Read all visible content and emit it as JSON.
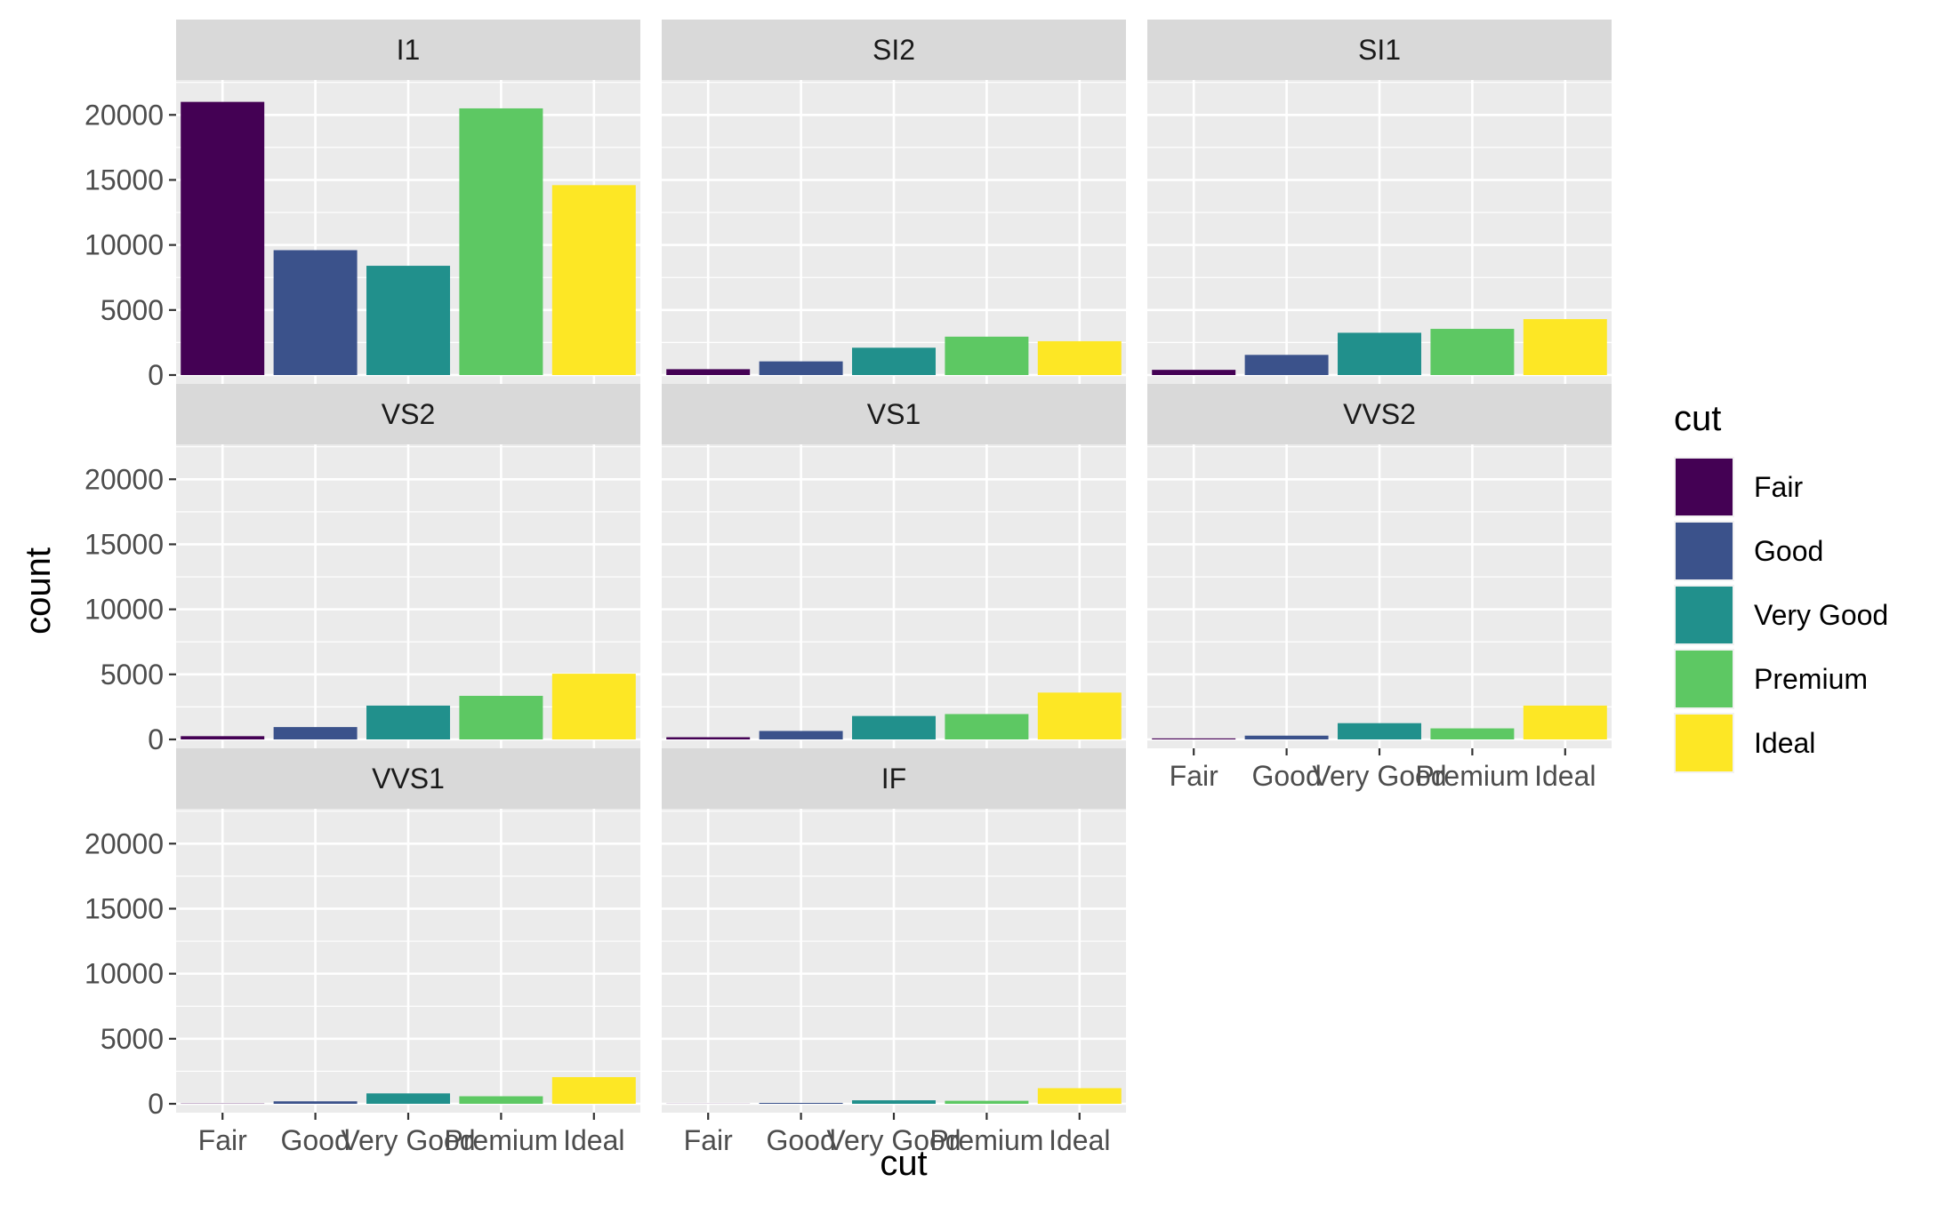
{
  "chart_data": {
    "type": "bar",
    "facet_by": "clarity",
    "xlabel": "cut",
    "ylabel": "count",
    "ylim": [
      0,
      22000
    ],
    "y_ticks": [
      0,
      5000,
      10000,
      15000,
      20000
    ],
    "y_tick_labels": [
      "0",
      "5000",
      "10000",
      "15000",
      "20000"
    ],
    "categories": [
      "Fair",
      "Good",
      "Very Good",
      "Premium",
      "Ideal"
    ],
    "colors": [
      "#440154",
      "#3b528b",
      "#21908c",
      "#5dc863",
      "#fde725"
    ],
    "panel_background": "#ebebeb",
    "strip_background": "#d9d9d9",
    "grid": true,
    "legend": {
      "title": "cut",
      "placement": "right",
      "entries": [
        "Fair",
        "Good",
        "Very Good",
        "Premium",
        "Ideal"
      ]
    },
    "panels": [
      {
        "title": "I1",
        "values": [
          21000,
          9600,
          8400,
          20500,
          14600
        ]
      },
      {
        "title": "SI2",
        "values": [
          450,
          1050,
          2100,
          2950,
          2600
        ]
      },
      {
        "title": "SI1",
        "values": [
          400,
          1550,
          3250,
          3550,
          4300
        ]
      },
      {
        "title": "VS2",
        "values": [
          250,
          950,
          2600,
          3350,
          5050
        ]
      },
      {
        "title": "VS1",
        "values": [
          170,
          650,
          1800,
          1950,
          3600
        ]
      },
      {
        "title": "VVS2",
        "values": [
          80,
          290,
          1250,
          850,
          2600
        ]
      },
      {
        "title": "VVS1",
        "values": [
          20,
          190,
          800,
          580,
          2050
        ]
      },
      {
        "title": "IF",
        "values": [
          10,
          70,
          270,
          230,
          1200
        ]
      }
    ]
  }
}
